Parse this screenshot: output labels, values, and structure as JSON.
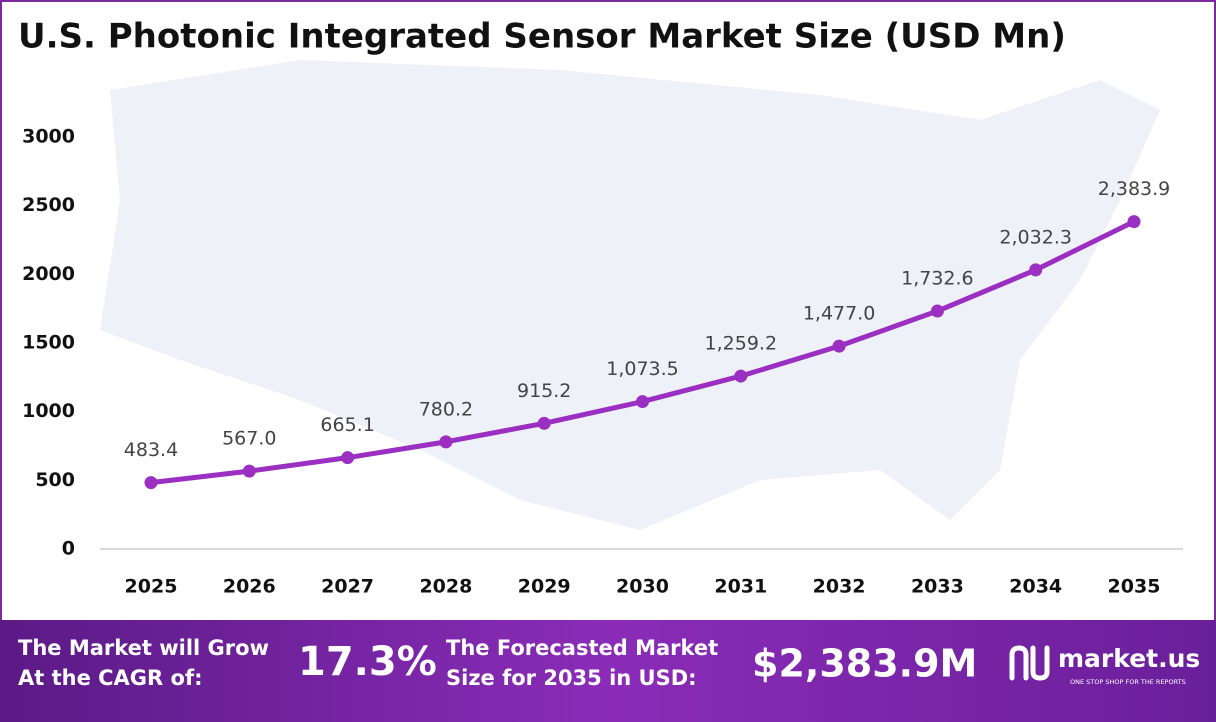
{
  "chart_data": {
    "type": "line",
    "title": "U.S. Photonic Integrated Sensor Market Size (USD Mn)",
    "categories": [
      "2025",
      "2026",
      "2027",
      "2028",
      "2029",
      "2030",
      "2031",
      "2032",
      "2033",
      "2034",
      "2035"
    ],
    "values": [
      483.4,
      567.0,
      665.1,
      780.2,
      915.2,
      1073.5,
      1259.2,
      1477.0,
      1732.6,
      2032.3,
      2383.9
    ],
    "value_labels": [
      "483.4",
      "567.0",
      "665.1",
      "780.2",
      "915.2",
      "1,073.5",
      "1,259.2",
      "1,477.0",
      "1,732.6",
      "2,032.3",
      "2,383.9"
    ],
    "color": "#9a2fc2",
    "ylim": [
      0,
      3000
    ],
    "yticks": [
      0,
      500,
      1000,
      1500,
      2000,
      2500,
      3000
    ],
    "grid": false
  },
  "footer": {
    "cagr_text": [
      "The Market will Grow",
      "At the CAGR of:"
    ],
    "cagr_value": "17.3%",
    "forecast_text": [
      "The Forecasted Market",
      "Size for 2035 in USD:"
    ],
    "forecast_value": "$2,383.9M",
    "brand": "market.us",
    "tagline": "ONE STOP SHOP FOR THE REPORTS"
  }
}
